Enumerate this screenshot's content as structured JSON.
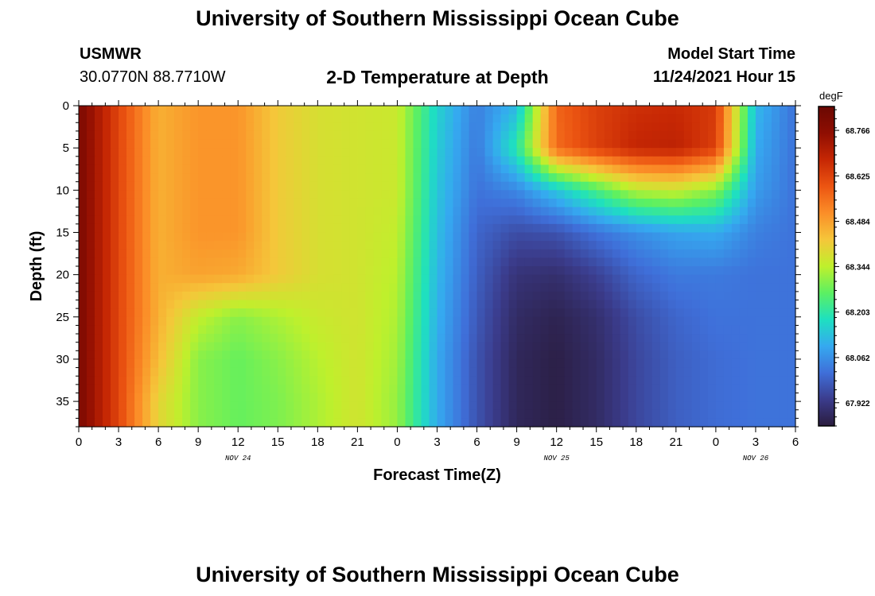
{
  "header": {
    "title": "University of Southern Mississippi Ocean Cube",
    "station": "USMWR",
    "coordinates": "30.0770N  88.7710W",
    "subtitle": "2-D Temperature at Depth",
    "model_start_label": "Model Start Time",
    "model_start_value": "11/24/2021 Hour 15"
  },
  "footer": {
    "title": "University of Southern Mississippi Ocean Cube"
  },
  "chart_data": {
    "type": "heatmap",
    "title": "2-D Temperature at Depth",
    "xlabel": "Forecast Time(Z)",
    "ylabel": "Depth (ft)",
    "x_tick_labels": [
      "0",
      "3",
      "6",
      "9",
      "12",
      "15",
      "18",
      "21",
      "0",
      "3",
      "6",
      "9",
      "12",
      "15",
      "18",
      "21",
      "0",
      "3",
      "6"
    ],
    "x_date_labels": [
      {
        "label": "NOV 24",
        "at_tick": 4
      },
      {
        "label": "NOV 25",
        "at_tick": 12
      },
      {
        "label": "NOV 26",
        "at_tick": 17
      }
    ],
    "xlim": [
      0,
      54
    ],
    "ylim": [
      0,
      38
    ],
    "y_ticks": [
      0,
      5,
      10,
      15,
      20,
      25,
      30,
      35
    ],
    "y_inverted": true,
    "colorbar": {
      "units": "degF",
      "ticks": [
        67.922,
        68.062,
        68.203,
        68.344,
        68.484,
        68.625,
        68.766
      ],
      "range": [
        67.85,
        68.84
      ],
      "colors": [
        "#2a1c3e",
        "#3b3c8c",
        "#3f6fd9",
        "#35a9f0",
        "#1ee0c0",
        "#5cf062",
        "#bff02c",
        "#f5c63a",
        "#fb8e28",
        "#ec5512",
        "#c62704",
        "#8f0e02",
        "#6a0802"
      ]
    },
    "grid": false,
    "legend": "colorbar-right",
    "values_depth_ft": [
      0,
      5,
      10,
      15,
      20,
      25,
      30,
      35,
      38
    ],
    "values_time_hours": [
      0,
      3,
      6,
      9,
      12,
      15,
      18,
      21,
      24,
      27,
      30,
      33,
      36,
      39,
      42,
      45,
      48,
      51,
      54
    ],
    "values_degF": [
      [
        68.8,
        68.62,
        68.46,
        68.5,
        68.5,
        68.42,
        68.38,
        68.37,
        68.36,
        68.16,
        68.04,
        68.12,
        68.57,
        68.63,
        68.66,
        68.67,
        68.64,
        68.12,
        68.02
      ],
      [
        68.8,
        68.62,
        68.46,
        68.5,
        68.5,
        68.42,
        68.38,
        68.37,
        68.36,
        68.15,
        68.03,
        68.2,
        68.56,
        68.63,
        68.68,
        68.69,
        68.63,
        68.1,
        68.02
      ],
      [
        68.8,
        68.62,
        68.46,
        68.5,
        68.5,
        68.42,
        68.38,
        68.37,
        68.36,
        68.14,
        68.02,
        68.05,
        68.14,
        68.24,
        68.34,
        68.36,
        68.3,
        68.08,
        68.02
      ],
      [
        68.8,
        68.62,
        68.46,
        68.5,
        68.5,
        68.42,
        68.38,
        68.37,
        68.35,
        68.13,
        68.0,
        67.96,
        67.97,
        68.02,
        68.06,
        68.09,
        68.1,
        68.04,
        68.02
      ],
      [
        68.8,
        68.62,
        68.46,
        68.48,
        68.47,
        68.42,
        68.38,
        68.37,
        68.34,
        68.12,
        67.99,
        67.91,
        67.9,
        67.94,
        68.0,
        68.03,
        68.03,
        68.02,
        68.02
      ],
      [
        68.8,
        68.62,
        68.46,
        68.35,
        68.3,
        68.33,
        68.36,
        68.37,
        68.33,
        68.11,
        67.98,
        67.89,
        67.87,
        67.9,
        67.96,
        68.0,
        68.02,
        68.02,
        68.02
      ],
      [
        68.8,
        68.62,
        68.44,
        68.3,
        68.27,
        68.3,
        68.34,
        68.37,
        68.32,
        68.1,
        67.97,
        67.88,
        67.86,
        67.89,
        67.95,
        67.99,
        68.01,
        68.02,
        68.02
      ],
      [
        68.8,
        68.62,
        68.4,
        68.3,
        68.27,
        68.29,
        68.33,
        68.37,
        68.31,
        68.1,
        67.97,
        67.88,
        67.86,
        67.89,
        67.95,
        67.99,
        68.01,
        68.02,
        68.02
      ],
      [
        68.8,
        68.62,
        68.4,
        68.3,
        68.27,
        68.29,
        68.33,
        68.37,
        68.31,
        68.1,
        67.97,
        67.88,
        67.86,
        67.89,
        67.95,
        67.99,
        68.01,
        68.02,
        68.02
      ]
    ]
  }
}
